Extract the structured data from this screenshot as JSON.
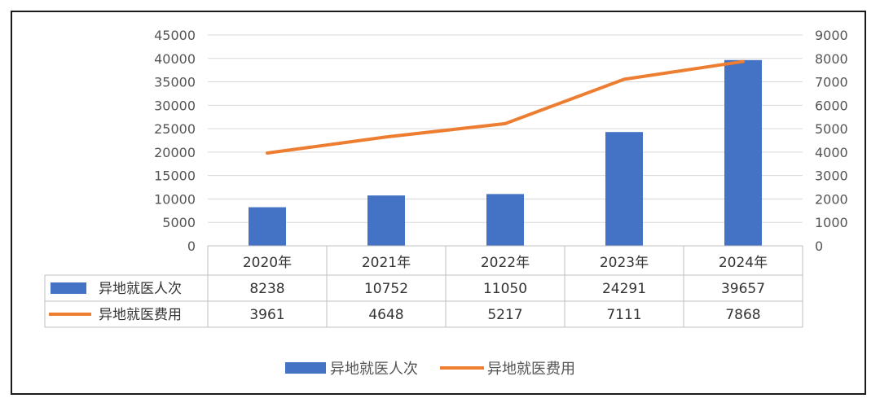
{
  "chart_data": {
    "type": "bar",
    "categories": [
      "2020年",
      "2021年",
      "2022年",
      "2023年",
      "2024年"
    ],
    "series": [
      {
        "name": "异地就医人次",
        "type": "bar",
        "axis": "left",
        "color": "#4472C4",
        "values": [
          8238,
          10752,
          11050,
          24291,
          39657
        ]
      },
      {
        "name": "异地就医费用",
        "type": "line",
        "axis": "right",
        "color": "#ED7D31",
        "values": [
          3961,
          4648,
          5217,
          7111,
          7868
        ]
      }
    ],
    "y_left": {
      "min": 0,
      "max": 45000,
      "step": 5000,
      "ticks": [
        "0",
        "5000",
        "10000",
        "15000",
        "20000",
        "25000",
        "30000",
        "35000",
        "40000",
        "45000"
      ]
    },
    "y_right": {
      "min": 0,
      "max": 9000,
      "step": 1000,
      "ticks": [
        "0",
        "1000",
        "2000",
        "3000",
        "4000",
        "5000",
        "6000",
        "7000",
        "8000",
        "9000"
      ]
    },
    "grid": true,
    "data_table": true,
    "legend": "bottom"
  }
}
